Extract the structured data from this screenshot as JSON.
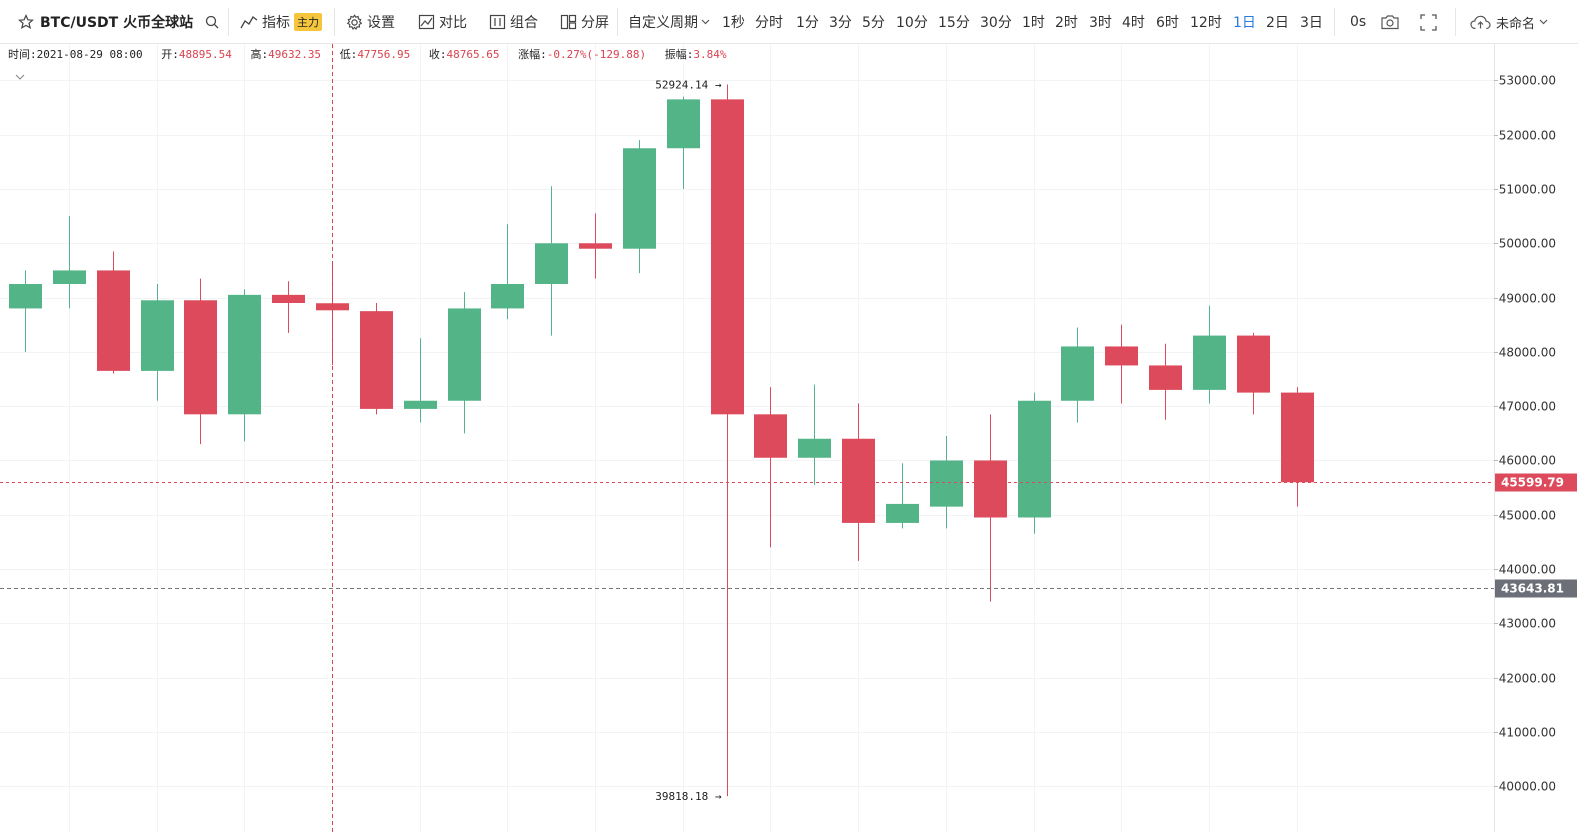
{
  "toolbar": {
    "symbol": "BTC/USDT 火币全球站",
    "indicator_label": "指标",
    "indicator_badge": "主力",
    "settings_label": "设置",
    "compare_label": "对比",
    "combo_label": "组合",
    "split_label": "分屏",
    "custom_period_label": "自定义周期",
    "periods": [
      "1秒",
      "分时",
      "1分",
      "3分",
      "5分",
      "10分",
      "15分",
      "30分",
      "1时",
      "2时",
      "3时",
      "4时",
      "6时",
      "12时",
      "1日",
      "2日",
      "3日"
    ],
    "active_period": "1日",
    "countdown": "0s",
    "layout_name": "未命名"
  },
  "infobar": {
    "time_label": "时间:",
    "time": "2021-08-29 08:00",
    "open_label": "开:",
    "open": "48895.54",
    "high_label": "高:",
    "high": "49632.35",
    "low_label": "低:",
    "low": "47756.95",
    "close_label": "收:",
    "close": "48765.65",
    "change_label": "涨幅:",
    "change": "-0.27%(-129.88)",
    "amplitude_label": "振幅:",
    "amplitude": "3.84%"
  },
  "colors": {
    "up": "#53b488",
    "down": "#dc4a5b",
    "last_price": "#dc4a5b",
    "crosshair_price": "#6c6f78",
    "active_period": "#2a7ae2"
  },
  "chart_data": {
    "type": "candlestick",
    "symbol": "BTC/USDT",
    "interval": "1日",
    "ylim": [
      39450,
      53250
    ],
    "y_ticks": [
      40000,
      41000,
      42000,
      43000,
      44000,
      45000,
      46000,
      47000,
      48000,
      49000,
      50000,
      51000,
      52000,
      53000
    ],
    "y_tick_labels": [
      "40000.00",
      "41000.00",
      "42000.00",
      "43000.00",
      "44000.00",
      "45000.00",
      "46000.00",
      "47000.00",
      "48000.00",
      "49000.00",
      "50000.00",
      "51000.00",
      "52000.00",
      "53000.00"
    ],
    "grid": true,
    "last_price": 45599.79,
    "last_price_label": "45599.79",
    "crosshair_price": 43643.81,
    "crosshair_price_label": "43643.81",
    "crosshair_candle_index": 7,
    "high_marker": {
      "candle_index": 16,
      "price": 52924.14,
      "label": "52924.14"
    },
    "low_marker": {
      "candle_index": 16,
      "price": 39818.18,
      "label": "39818.18"
    },
    "candles": [
      {
        "o": 48800,
        "h": 49500,
        "l": 48000,
        "c": 49250
      },
      {
        "o": 49250,
        "h": 50500,
        "l": 48800,
        "c": 49500
      },
      {
        "o": 49500,
        "h": 49850,
        "l": 47600,
        "c": 47650
      },
      {
        "o": 47650,
        "h": 49250,
        "l": 47100,
        "c": 48950
      },
      {
        "o": 48950,
        "h": 49350,
        "l": 46300,
        "c": 46850
      },
      {
        "o": 46850,
        "h": 49150,
        "l": 46350,
        "c": 49050
      },
      {
        "o": 49050,
        "h": 49300,
        "l": 48350,
        "c": 48900
      },
      {
        "o": 48895.54,
        "h": 49632.35,
        "l": 47756.95,
        "c": 48765.65
      },
      {
        "o": 48750,
        "h": 48900,
        "l": 46850,
        "c": 46950
      },
      {
        "o": 46950,
        "h": 48250,
        "l": 46700,
        "c": 47100
      },
      {
        "o": 47100,
        "h": 49100,
        "l": 46500,
        "c": 48800
      },
      {
        "o": 48800,
        "h": 50350,
        "l": 48600,
        "c": 49250
      },
      {
        "o": 49250,
        "h": 51050,
        "l": 48300,
        "c": 50000
      },
      {
        "o": 50000,
        "h": 50550,
        "l": 49350,
        "c": 49900
      },
      {
        "o": 49900,
        "h": 51900,
        "l": 49450,
        "c": 51750
      },
      {
        "o": 51750,
        "h": 52700,
        "l": 51000,
        "c": 52650
      },
      {
        "o": 52650,
        "h": 52924.14,
        "l": 39818.18,
        "c": 46850
      },
      {
        "o": 46850,
        "h": 47350,
        "l": 44400,
        "c": 46050
      },
      {
        "o": 46050,
        "h": 47400,
        "l": 45550,
        "c": 46400
      },
      {
        "o": 46400,
        "h": 47050,
        "l": 44150,
        "c": 44850
      },
      {
        "o": 44850,
        "h": 45950,
        "l": 44750,
        "c": 45200
      },
      {
        "o": 45150,
        "h": 46450,
        "l": 44750,
        "c": 46000
      },
      {
        "o": 46000,
        "h": 46850,
        "l": 43400,
        "c": 44950
      },
      {
        "o": 44950,
        "h": 47250,
        "l": 44650,
        "c": 47100
      },
      {
        "o": 47100,
        "h": 48450,
        "l": 46700,
        "c": 48100
      },
      {
        "o": 48100,
        "h": 48500,
        "l": 47050,
        "c": 47750
      },
      {
        "o": 47750,
        "h": 48150,
        "l": 46750,
        "c": 47300
      },
      {
        "o": 47300,
        "h": 48850,
        "l": 47050,
        "c": 48300
      },
      {
        "o": 48300,
        "h": 48350,
        "l": 46850,
        "c": 47250
      },
      {
        "o": 47250,
        "h": 47350,
        "l": 45150,
        "c": 45599.79
      }
    ]
  }
}
